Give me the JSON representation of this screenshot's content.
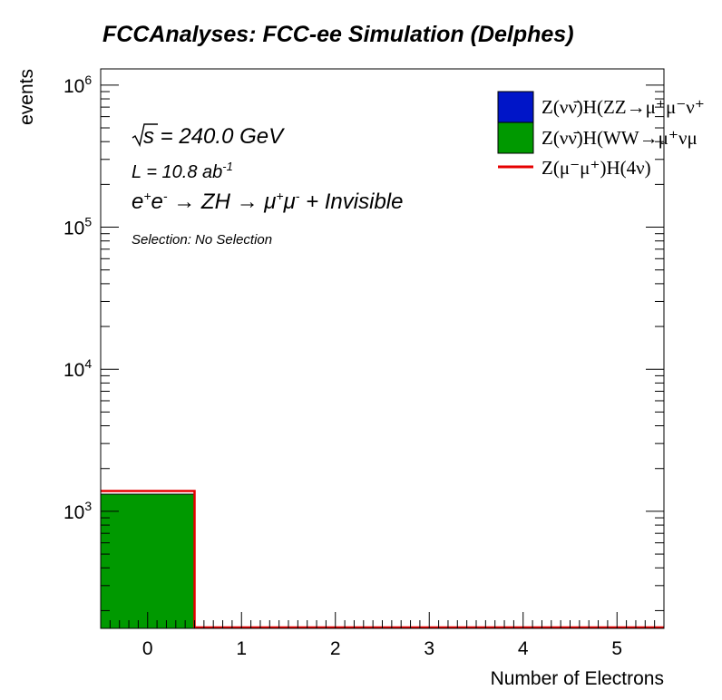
{
  "chart_data": {
    "type": "bar",
    "title": "FCCAnalyses: FCC-ee Simulation (Delphes)",
    "xlabel": "Number of Electrons",
    "ylabel": "events",
    "x_ticks": [
      "0",
      "1",
      "2",
      "3",
      "4",
      "5"
    ],
    "xlim": [
      -0.5,
      5.5
    ],
    "y_scale": "log",
    "ylim": [
      150,
      1300000
    ],
    "y_ticks": [
      {
        "value": 1000,
        "base": "10",
        "exp": "3"
      },
      {
        "value": 10000,
        "base": "10",
        "exp": "4"
      },
      {
        "value": 100000,
        "base": "10",
        "exp": "5"
      },
      {
        "value": 1000000,
        "base": "10",
        "exp": "6"
      }
    ],
    "bins": [
      [
        -0.5,
        0.5
      ],
      [
        0.5,
        1.5
      ],
      [
        1.5,
        2.5
      ],
      [
        2.5,
        3.5
      ],
      [
        3.5,
        4.5
      ],
      [
        4.5,
        5.5
      ]
    ],
    "series": [
      {
        "name": "Z(νν̄)H(ZZ→μ⁺μ⁻ν⁺",
        "kind": "stacked",
        "color": "#0015c8",
        "values": [
          0,
          0,
          0,
          0,
          0,
          0
        ]
      },
      {
        "name": "Z(νν̄)H(WW→μ⁺νμ",
        "kind": "stacked",
        "color": "#009900",
        "values": [
          1320,
          0,
          0,
          0,
          0,
          0
        ]
      },
      {
        "name": "Z(μ⁻μ⁺)H(4ν)",
        "kind": "line",
        "color": "#e60000",
        "values": [
          1390,
          0,
          0,
          0,
          0,
          0
        ]
      }
    ],
    "legend_position": "top-right",
    "grid": false,
    "annotations": {
      "sqrt_s": "s",
      "sqrt_s_rest": " = 240.0 GeV",
      "lumi_main": "L = 10.8 ab",
      "lumi_exp": "-1",
      "process_e": "e",
      "process_ep": "+",
      "process_e2": "e",
      "process_em": "-",
      "process_arrow1": " → ZH → μ",
      "process_mup": "+",
      "process_mu2": "μ",
      "process_mum": "-",
      "process_rest": " + Invisible",
      "selection": "Selection: No Selection"
    }
  }
}
